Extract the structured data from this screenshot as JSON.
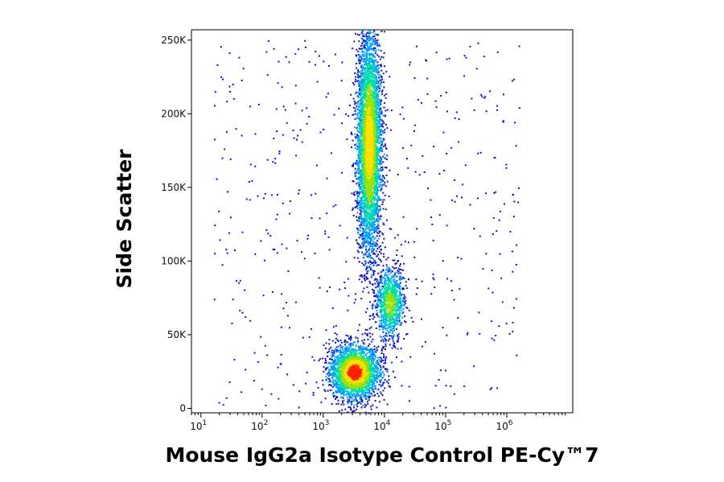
{
  "chart_data": {
    "type": "scatter",
    "subtype": "flow-cytometry density plot",
    "xlabel": "Mouse IgG2a Isotype Control PE-Cy™7",
    "ylabel": "Side Scatter",
    "x_scale": "log",
    "xlim": [
      7,
      12000000
    ],
    "ylim": [
      -3000,
      257000
    ],
    "x_ticks": [
      {
        "value": 10,
        "label": "10",
        "exp": "1"
      },
      {
        "value": 100,
        "label": "10",
        "exp": "2"
      },
      {
        "value": 1000,
        "label": "10",
        "exp": "3"
      },
      {
        "value": 10000,
        "label": "10",
        "exp": "4"
      },
      {
        "value": 100000,
        "label": "10",
        "exp": "5"
      },
      {
        "value": 1000000,
        "label": "10",
        "exp": "6"
      }
    ],
    "y_ticks": [
      {
        "value": 0,
        "label": "0"
      },
      {
        "value": 50000,
        "label": "50K"
      },
      {
        "value": 100000,
        "label": "100K"
      },
      {
        "value": 150000,
        "label": "150K"
      },
      {
        "value": 200000,
        "label": "200K"
      },
      {
        "value": 250000,
        "label": "250K"
      }
    ],
    "colormap": [
      "#1010c8",
      "#00a0ff",
      "#00e0a0",
      "#a0e000",
      "#ffe000",
      "#ff2000"
    ],
    "populations": [
      {
        "center": {
          "x": 3200,
          "y": 25000
        },
        "spread_log10_x": 0.2,
        "spread_y": 9000,
        "count": 2600,
        "peak_color": "#ff2000"
      },
      {
        "center": {
          "x": 12000,
          "y": 72000
        },
        "spread_log10_x": 0.12,
        "spread_y": 12000,
        "count": 900,
        "peak_color": "#a0e000"
      },
      {
        "center": {
          "x": 5500,
          "y": 180000
        },
        "spread_log10_x": 0.1,
        "spread_y": 38000,
        "count": 4200,
        "peak_color": "#ffe000"
      }
    ],
    "grid": false,
    "legend": "none"
  }
}
